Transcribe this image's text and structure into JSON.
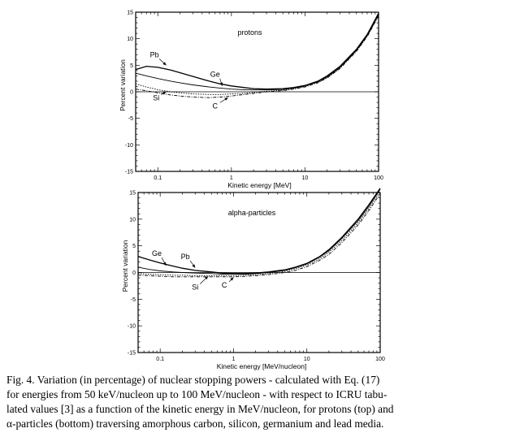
{
  "figure": {
    "caption_lines": [
      "Fig. 4.   Variation (in percentage) of nuclear stopping powers - calculated with Eq. (17)",
      "for energies from 50 keV/nucleon up to 100 MeV/nucleon - with respect to ICRU tabu-",
      "lated values [3] as a function of the kinetic energy in MeV/nucleon, for protons (top) and",
      "α-particles (bottom) traversing amorphous carbon, silicon, germanium and lead media."
    ]
  },
  "chart_data": [
    {
      "type": "line",
      "title": "protons",
      "xlabel": "Kinetic energy  [MeV]",
      "ylabel": "Percent variation",
      "xscale": "log",
      "xlim": [
        0.05,
        100
      ],
      "ylim": [
        -15,
        15
      ],
      "xticks": [
        0.1,
        1,
        10,
        100
      ],
      "xtick_labels": [
        "0.1",
        "1",
        "10",
        "100"
      ],
      "yticks": [
        -15,
        -10,
        -5,
        0,
        5,
        10,
        15
      ],
      "ytick_labels": [
        "-15",
        "-10",
        "-5",
        "0",
        "5",
        "10",
        "15"
      ],
      "grid": false,
      "legend": "none",
      "series": [
        {
          "name": "Pb",
          "style": "solid",
          "x": [
            0.05,
            0.07,
            0.1,
            0.15,
            0.2,
            0.3,
            0.5,
            0.7,
            1,
            1.5,
            2,
            3,
            5,
            7,
            10,
            15,
            20,
            30,
            50,
            70,
            100
          ],
          "y": [
            4.2,
            4.8,
            4.6,
            4.1,
            3.6,
            2.9,
            2.0,
            1.5,
            1.1,
            0.8,
            0.6,
            0.5,
            0.6,
            0.8,
            1.2,
            2.0,
            3.0,
            4.8,
            8.0,
            10.8,
            14.8
          ]
        },
        {
          "name": "Ge",
          "style": "solid",
          "x": [
            0.05,
            0.07,
            0.1,
            0.15,
            0.2,
            0.3,
            0.5,
            0.7,
            1,
            1.5,
            2,
            3,
            5,
            7,
            10,
            15,
            20,
            30,
            50,
            70,
            100
          ],
          "y": [
            3.5,
            3.0,
            2.5,
            2.0,
            1.7,
            1.3,
            0.9,
            0.7,
            0.5,
            0.4,
            0.35,
            0.35,
            0.45,
            0.7,
            1.1,
            1.9,
            2.8,
            4.6,
            7.8,
            10.6,
            14.5
          ]
        },
        {
          "name": "Si",
          "style": "dotted",
          "x": [
            0.05,
            0.07,
            0.1,
            0.15,
            0.2,
            0.3,
            0.5,
            0.7,
            1,
            1.5,
            2,
            3,
            5,
            7,
            10,
            15,
            20,
            30,
            50,
            70,
            100
          ],
          "y": [
            1.5,
            0.9,
            0.4,
            0.0,
            -0.2,
            -0.4,
            -0.5,
            -0.5,
            -0.4,
            -0.3,
            -0.1,
            0.1,
            0.3,
            0.6,
            1.0,
            1.8,
            2.7,
            4.5,
            7.7,
            10.5,
            14.4
          ]
        },
        {
          "name": "C",
          "style": "dashdot",
          "x": [
            0.05,
            0.07,
            0.1,
            0.15,
            0.2,
            0.3,
            0.5,
            0.7,
            1,
            1.5,
            2,
            3,
            5,
            7,
            10,
            15,
            20,
            30,
            50,
            70,
            100
          ],
          "y": [
            0.5,
            0.2,
            -0.2,
            -0.6,
            -0.8,
            -1.0,
            -1.1,
            -1.0,
            -0.8,
            -0.5,
            -0.3,
            0.0,
            0.2,
            0.5,
            0.9,
            1.7,
            2.6,
            4.4,
            7.6,
            10.4,
            14.3
          ]
        }
      ],
      "annotations": [
        {
          "text": "Pb",
          "x": 0.09,
          "y": 6.5,
          "arrow_to": [
            0.13,
            5.0
          ]
        },
        {
          "text": "Ge",
          "x": 0.6,
          "y": 2.8,
          "arrow_to": [
            0.75,
            1.1
          ]
        },
        {
          "text": "Si",
          "x": 0.095,
          "y": -1.6,
          "arrow_to": [
            0.13,
            0.0
          ]
        },
        {
          "text": "C",
          "x": 0.6,
          "y": -3.1,
          "arrow_to": [
            0.9,
            -1.1
          ]
        }
      ]
    },
    {
      "type": "line",
      "title": "alpha-particles",
      "xlabel": "Kinetic energy  [MeV/nucleon]",
      "ylabel": "Percent variation",
      "xscale": "log",
      "xlim": [
        0.05,
        100
      ],
      "ylim": [
        -15,
        15
      ],
      "xticks": [
        0.1,
        1,
        10,
        100
      ],
      "xtick_labels": [
        "0.1",
        "1",
        "10",
        "100"
      ],
      "yticks": [
        -15,
        -10,
        -5,
        0,
        5,
        10,
        15
      ],
      "ytick_labels": [
        "-15",
        "-10",
        "-5",
        "0",
        "5",
        "10",
        "15"
      ],
      "grid": false,
      "legend": "none",
      "series": [
        {
          "name": "Pb",
          "style": "solid",
          "x": [
            0.05,
            0.07,
            0.1,
            0.15,
            0.2,
            0.3,
            0.5,
            0.7,
            1,
            1.5,
            2,
            3,
            5,
            7,
            10,
            15,
            20,
            30,
            50,
            70,
            100
          ],
          "y": [
            3.0,
            2.4,
            1.8,
            1.2,
            0.8,
            0.4,
            0.1,
            -0.1,
            -0.2,
            -0.2,
            -0.1,
            0.1,
            0.5,
            1.0,
            1.7,
            3.0,
            4.3,
            6.6,
            10.0,
            12.7,
            16.0
          ]
        },
        {
          "name": "Ge",
          "style": "solid",
          "x": [
            0.05,
            0.07,
            0.1,
            0.15,
            0.2,
            0.3,
            0.5,
            0.7,
            1,
            1.5,
            2,
            3,
            5,
            7,
            10,
            15,
            20,
            30,
            50,
            70,
            100
          ],
          "y": [
            1.0,
            0.6,
            0.3,
            0.1,
            0.0,
            -0.1,
            -0.2,
            -0.3,
            -0.3,
            -0.3,
            -0.2,
            0.0,
            0.4,
            0.9,
            1.6,
            2.9,
            4.1,
            6.4,
            9.7,
            12.4,
            15.6
          ]
        },
        {
          "name": "Si",
          "style": "dotted",
          "x": [
            0.05,
            0.07,
            0.1,
            0.15,
            0.2,
            0.3,
            0.5,
            0.7,
            1,
            1.5,
            2,
            3,
            5,
            7,
            10,
            15,
            20,
            30,
            50,
            70,
            100
          ],
          "y": [
            -0.2,
            -0.3,
            -0.4,
            -0.5,
            -0.5,
            -0.6,
            -0.6,
            -0.6,
            -0.6,
            -0.5,
            -0.4,
            -0.2,
            0.2,
            0.7,
            1.4,
            2.6,
            3.8,
            6.0,
            9.3,
            12.0,
            15.2
          ]
        },
        {
          "name": "C",
          "style": "dashdot",
          "x": [
            0.05,
            0.07,
            0.1,
            0.15,
            0.2,
            0.3,
            0.5,
            0.7,
            1,
            1.5,
            2,
            3,
            5,
            7,
            10,
            15,
            20,
            30,
            50,
            70,
            100
          ],
          "y": [
            -0.5,
            -0.6,
            -0.7,
            -0.8,
            -0.8,
            -0.8,
            -0.8,
            -0.8,
            -0.8,
            -0.7,
            -0.6,
            -0.4,
            0.0,
            0.4,
            1.1,
            2.3,
            3.4,
            5.6,
            8.9,
            11.6,
            14.8
          ]
        }
      ],
      "annotations": [
        {
          "text": "Ge",
          "x": 0.09,
          "y": 3.1,
          "arrow_to": [
            0.12,
            1.3
          ]
        },
        {
          "text": "Pb",
          "x": 0.22,
          "y": 2.5,
          "arrow_to": [
            0.3,
            0.9
          ]
        },
        {
          "text": "Si",
          "x": 0.3,
          "y": -3.2,
          "arrow_to": [
            0.45,
            -0.7
          ]
        },
        {
          "text": "C",
          "x": 0.75,
          "y": -2.8,
          "arrow_to": [
            1.0,
            -0.9
          ]
        }
      ]
    }
  ]
}
